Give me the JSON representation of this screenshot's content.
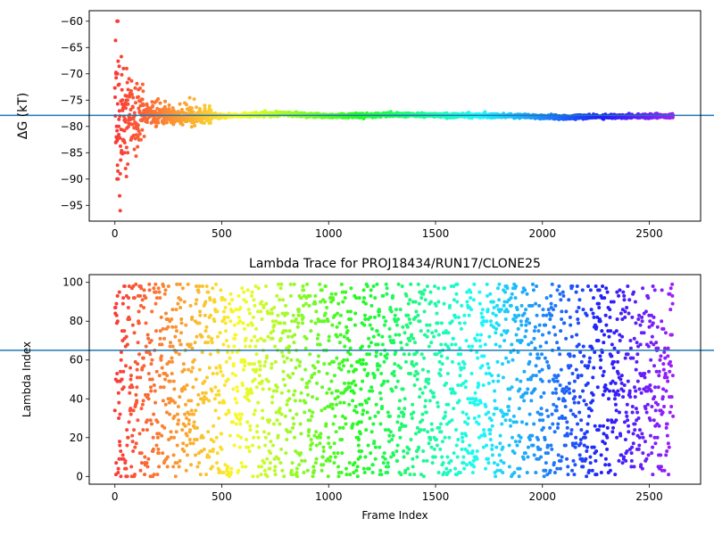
{
  "chart_data": [
    {
      "type": "scatter",
      "title": "",
      "xlabel": "",
      "ylabel": "ΔG (kT)",
      "xlim": [
        -120,
        2740
      ],
      "ylim": [
        -98,
        -58
      ],
      "xticks": [
        0,
        500,
        1000,
        1500,
        2000,
        2500
      ],
      "yticks": [
        -60,
        -65,
        -70,
        -75,
        -80,
        -85,
        -90,
        -95
      ],
      "hline": -77.9,
      "hline_color": "#1f77b4",
      "colormap": "rainbow (red at frame 0 → violet at last frame)",
      "n_frames": 2612,
      "grid": false,
      "notes_points": [
        {
          "x": 10,
          "y": -60
        },
        {
          "x": 14,
          "y": -60
        },
        {
          "x": 5,
          "y": -70
        },
        {
          "x": 12,
          "y": -70
        },
        {
          "x": 20,
          "y": -72
        },
        {
          "x": 8,
          "y": -80
        },
        {
          "x": 18,
          "y": -80
        },
        {
          "x": 10,
          "y": -90
        },
        {
          "x": 15,
          "y": -90
        },
        {
          "x": 25,
          "y": -96
        },
        {
          "x": 40,
          "y": -69
        },
        {
          "x": 55,
          "y": -69
        },
        {
          "x": 30,
          "y": -85
        },
        {
          "x": 45,
          "y": -85
        },
        {
          "x": 60,
          "y": -85
        },
        {
          "x": 50,
          "y": -88
        },
        {
          "x": 35,
          "y": -75
        },
        {
          "x": 65,
          "y": -78
        },
        {
          "x": 80,
          "y": -82
        },
        {
          "x": 100,
          "y": -80
        },
        {
          "x": 110,
          "y": -73
        },
        {
          "x": 130,
          "y": -72
        },
        {
          "x": 150,
          "y": -77
        },
        {
          "x": 200,
          "y": -79
        },
        {
          "x": 300,
          "y": -79
        },
        {
          "x": 420,
          "y": -76
        }
      ],
      "converged_profile": [
        {
          "x": 150,
          "y": -77.5
        },
        {
          "x": 300,
          "y": -78.0
        },
        {
          "x": 500,
          "y": -78.0
        },
        {
          "x": 800,
          "y": -77.6
        },
        {
          "x": 1000,
          "y": -78.0
        },
        {
          "x": 1300,
          "y": -77.8
        },
        {
          "x": 1600,
          "y": -77.9
        },
        {
          "x": 1900,
          "y": -78.0
        },
        {
          "x": 2100,
          "y": -78.3
        },
        {
          "x": 2300,
          "y": -78.1
        },
        {
          "x": 2600,
          "y": -78.0
        }
      ]
    },
    {
      "type": "scatter",
      "title": "Lambda Trace for PROJ18434/RUN17/CLONE25",
      "xlabel": "Frame Index",
      "ylabel": "Lambda Index",
      "xlim": [
        -120,
        2740
      ],
      "ylim": [
        -4,
        104
      ],
      "xticks": [
        0,
        500,
        1000,
        1500,
        2000,
        2500
      ],
      "yticks": [
        0,
        20,
        40,
        60,
        80,
        100
      ],
      "hline": 65,
      "hline_color": "#1f77b4",
      "colormap": "rainbow (red at frame 0 → violet at last frame)",
      "n_frames": 2612,
      "value_range": [
        0,
        99
      ],
      "grid": false
    }
  ]
}
